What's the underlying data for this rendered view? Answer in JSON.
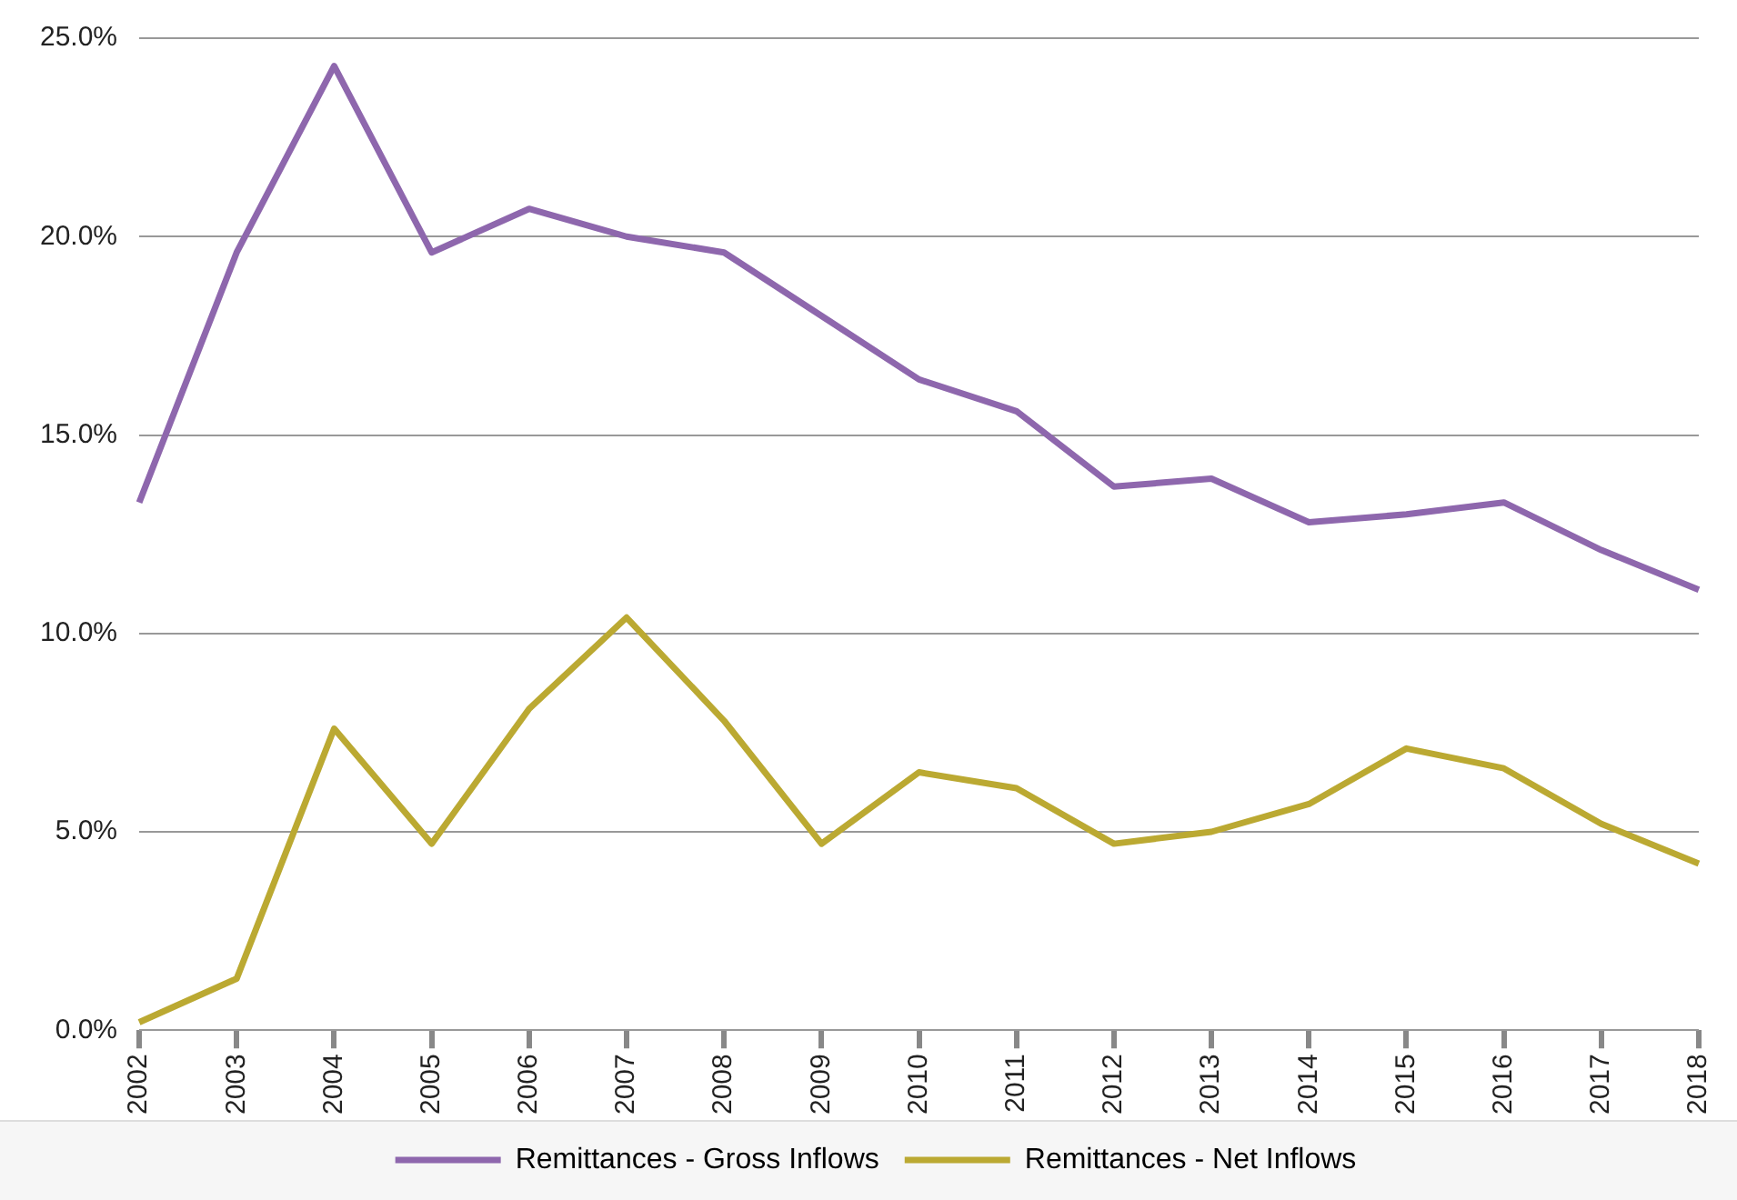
{
  "chart_data": {
    "type": "line",
    "categories": [
      "2002",
      "2003",
      "2004",
      "2005",
      "2006",
      "2007",
      "2008",
      "2009",
      "2010",
      "2011",
      "2012",
      "2013",
      "2014",
      "2015",
      "2016",
      "2017",
      "2018"
    ],
    "series": [
      {
        "name": "Remittances - Gross Inflows",
        "color": "#8e67ad",
        "values": [
          13.3,
          19.6,
          24.3,
          19.6,
          20.7,
          20.0,
          19.6,
          18.0,
          16.4,
          15.6,
          13.7,
          13.9,
          12.8,
          13.0,
          13.3,
          12.1,
          11.1
        ]
      },
      {
        "name": "Remittances - Net Inflows",
        "color": "#bba932",
        "values": [
          0.2,
          1.3,
          7.6,
          4.7,
          8.1,
          10.4,
          7.8,
          4.7,
          6.5,
          6.1,
          4.7,
          5.0,
          5.7,
          7.1,
          6.6,
          5.2,
          4.2
        ]
      }
    ],
    "ylim": [
      0,
      25
    ],
    "yticks": [
      {
        "value": 0,
        "label": "0.0%"
      },
      {
        "value": 5,
        "label": "5.0%"
      },
      {
        "value": 10,
        "label": "10.0%"
      },
      {
        "value": 15,
        "label": "15.0%"
      },
      {
        "value": 20,
        "label": "20.0%"
      },
      {
        "value": 25,
        "label": "25.0%"
      }
    ],
    "grid": "y",
    "legend": "bottom",
    "marker": "none",
    "line_style": "solid"
  }
}
